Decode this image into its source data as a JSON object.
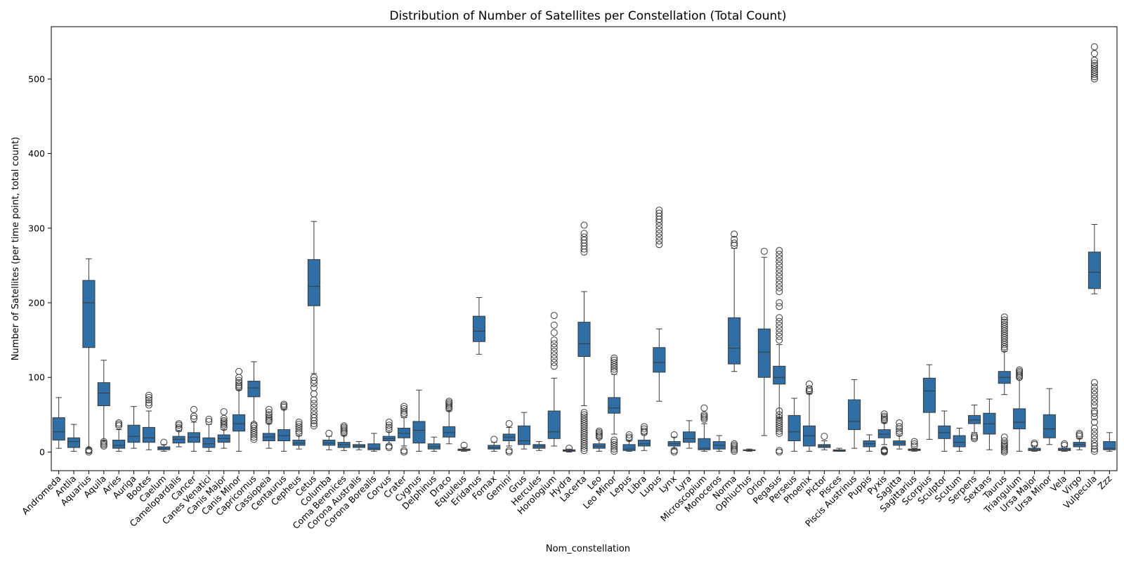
{
  "chart_data": {
    "type": "box",
    "title": "Distribution of Number of Satellites per Constellation (Total Count)",
    "xlabel": "Nom_constellation",
    "ylabel": "Number of Satellites (per time point, total count)",
    "ylim": [
      -25,
      570
    ],
    "yticks": [
      0,
      100,
      200,
      300,
      400,
      500
    ],
    "grid": false,
    "box_color": "#2f6fa6",
    "series": [
      {
        "name": "Andromeda",
        "whislo": 5,
        "q1": 16,
        "med": 27,
        "q3": 46,
        "whishi": 73,
        "fliers": []
      },
      {
        "name": "Antlia",
        "whislo": 1,
        "q1": 6,
        "med": 14,
        "q3": 19,
        "whishi": 37,
        "fliers": []
      },
      {
        "name": "Aquarius",
        "whislo": 5,
        "q1": 140,
        "med": 200,
        "q3": 230,
        "whishi": 259,
        "fliers": [
          0,
          2,
          3
        ]
      },
      {
        "name": "Aquila",
        "whislo": 15,
        "q1": 62,
        "med": 79,
        "q3": 93,
        "whishi": 123,
        "fliers": [
          8,
          10,
          12,
          14
        ]
      },
      {
        "name": "Aries",
        "whislo": 1,
        "q1": 5,
        "med": 9,
        "q3": 16,
        "whishi": 30,
        "fliers": [
          35,
          37,
          39
        ]
      },
      {
        "name": "Auriga",
        "whislo": 5,
        "q1": 13,
        "med": 21,
        "q3": 36,
        "whishi": 61,
        "fliers": []
      },
      {
        "name": "Bootes",
        "whislo": 3,
        "q1": 13,
        "med": 19,
        "q3": 33,
        "whishi": 55,
        "fliers": [
          63,
          66,
          70,
          73,
          76
        ]
      },
      {
        "name": "Caelum",
        "whislo": 1,
        "q1": 3,
        "med": 5,
        "q3": 7,
        "whishi": 10,
        "fliers": [
          13
        ]
      },
      {
        "name": "Camelopardalis",
        "whislo": 7,
        "q1": 12,
        "med": 17,
        "q3": 21,
        "whishi": 28,
        "fliers": [
          31,
          33,
          36,
          38
        ]
      },
      {
        "name": "Cancer",
        "whislo": 1,
        "q1": 13,
        "med": 20,
        "q3": 26,
        "whishi": 40,
        "fliers": [
          45,
          48,
          57
        ]
      },
      {
        "name": "Canes Venatici",
        "whislo": 1,
        "q1": 6,
        "med": 11,
        "q3": 19,
        "whishi": 37,
        "fliers": [
          41,
          44
        ]
      },
      {
        "name": "Canis Major",
        "whislo": 5,
        "q1": 13,
        "med": 18,
        "q3": 23,
        "whishi": 30,
        "fliers": [
          33,
          36,
          38,
          40,
          42,
          45,
          54
        ]
      },
      {
        "name": "Canis Minor",
        "whislo": 1,
        "q1": 28,
        "med": 38,
        "q3": 50,
        "whishi": 83,
        "fliers": [
          86,
          88,
          90,
          93,
          96,
          100,
          108
        ]
      },
      {
        "name": "Capricornus",
        "whislo": 39,
        "q1": 74,
        "med": 86,
        "q3": 95,
        "whishi": 121,
        "fliers": [
          17,
          20,
          23,
          26,
          29,
          32,
          35,
          37
        ]
      },
      {
        "name": "Cassiopeia",
        "whislo": 5,
        "q1": 15,
        "med": 20,
        "q3": 25,
        "whishi": 38,
        "fliers": [
          41,
          43,
          45,
          47,
          50,
          53,
          57
        ]
      },
      {
        "name": "Centaurus",
        "whislo": 1,
        "q1": 15,
        "med": 22,
        "q3": 30,
        "whishi": 57,
        "fliers": [
          60,
          62,
          64
        ]
      },
      {
        "name": "Cepheus",
        "whislo": 4,
        "q1": 9,
        "med": 12,
        "q3": 16,
        "whishi": 22,
        "fliers": [
          25,
          28,
          31,
          34,
          37,
          40
        ]
      },
      {
        "name": "Cetus",
        "whislo": 105,
        "q1": 196,
        "med": 222,
        "q3": 258,
        "whishi": 309,
        "fliers": [
          35,
          38,
          42,
          46,
          50,
          55,
          60,
          65,
          70,
          78,
          86,
          92,
          96,
          100
        ]
      },
      {
        "name": "Columba",
        "whislo": 3,
        "q1": 9,
        "med": 12,
        "q3": 16,
        "whishi": 21,
        "fliers": [
          25
        ]
      },
      {
        "name": "Coma Berenices",
        "whislo": 2,
        "q1": 6,
        "med": 10,
        "q3": 13,
        "whishi": 22,
        "fliers": [
          25,
          27,
          29,
          31,
          33,
          35
        ]
      },
      {
        "name": "Corona Australis",
        "whislo": 3,
        "q1": 6,
        "med": 8,
        "q3": 10,
        "whishi": 14,
        "fliers": []
      },
      {
        "name": "Corona Borealis",
        "whislo": 1,
        "q1": 3,
        "med": 5,
        "q3": 11,
        "whishi": 25,
        "fliers": []
      },
      {
        "name": "Corvus",
        "whislo": 10,
        "q1": 15,
        "med": 18,
        "q3": 21,
        "whishi": 27,
        "fliers": [
          6,
          8,
          30,
          33,
          36,
          40
        ]
      },
      {
        "name": "Crater",
        "whislo": 8,
        "q1": 19,
        "med": 25,
        "q3": 32,
        "whishi": 46,
        "fliers": [
          0,
          2,
          50,
          52,
          55,
          58,
          61
        ]
      },
      {
        "name": "Cygnus",
        "whislo": 1,
        "q1": 12,
        "med": 29,
        "q3": 41,
        "whishi": 83,
        "fliers": []
      },
      {
        "name": "Delphinus",
        "whislo": 1,
        "q1": 4,
        "med": 7,
        "q3": 11,
        "whishi": 20,
        "fliers": []
      },
      {
        "name": "Draco",
        "whislo": 11,
        "q1": 20,
        "med": 26,
        "q3": 34,
        "whishi": 55,
        "fliers": [
          58,
          60,
          62,
          64,
          66,
          68
        ]
      },
      {
        "name": "Equuleus",
        "whislo": 1,
        "q1": 2,
        "med": 3,
        "q3": 4,
        "whishi": 6,
        "fliers": [
          9
        ]
      },
      {
        "name": "Eridanus",
        "whislo": 131,
        "q1": 148,
        "med": 162,
        "q3": 182,
        "whishi": 207,
        "fliers": []
      },
      {
        "name": "Fornax",
        "whislo": 1,
        "q1": 4,
        "med": 6,
        "q3": 9,
        "whishi": 13,
        "fliers": [
          17
        ]
      },
      {
        "name": "Gemini",
        "whislo": 8,
        "q1": 15,
        "med": 20,
        "q3": 24,
        "whishi": 33,
        "fliers": [
          0,
          2,
          38
        ]
      },
      {
        "name": "Grus",
        "whislo": 4,
        "q1": 10,
        "med": 15,
        "q3": 35,
        "whishi": 53,
        "fliers": []
      },
      {
        "name": "Hercules",
        "whislo": 2,
        "q1": 5,
        "med": 8,
        "q3": 10,
        "whishi": 14,
        "fliers": []
      },
      {
        "name": "Horologium",
        "whislo": 8,
        "q1": 18,
        "med": 27,
        "q3": 55,
        "whishi": 99,
        "fliers": [
          115,
          120,
          125,
          130,
          135,
          140,
          145,
          150,
          160,
          170,
          183
        ]
      },
      {
        "name": "Hydra",
        "whislo": 0,
        "q1": 1,
        "med": 2,
        "q3": 3,
        "whishi": 4,
        "fliers": [
          5
        ]
      },
      {
        "name": "Lacerta",
        "whislo": 62,
        "q1": 128,
        "med": 145,
        "q3": 174,
        "whishi": 215,
        "fliers": [
          2,
          5,
          8,
          11,
          14,
          17,
          20,
          23,
          26,
          29,
          32,
          35,
          38,
          41,
          44,
          47,
          50,
          53,
          268,
          272,
          276,
          280,
          284,
          288,
          293,
          304
        ]
      },
      {
        "name": "Leo",
        "whislo": 1,
        "q1": 5,
        "med": 8,
        "q3": 11,
        "whishi": 18,
        "fliers": [
          20,
          22,
          24,
          26,
          28
        ]
      },
      {
        "name": "Leo Minor",
        "whislo": 24,
        "q1": 52,
        "med": 59,
        "q3": 73,
        "whishi": 104,
        "fliers": [
          1,
          4,
          7,
          10,
          13,
          16,
          108,
          111,
          114,
          117,
          120,
          123,
          126
        ]
      },
      {
        "name": "Lepus",
        "whislo": 1,
        "q1": 2,
        "med": 4,
        "q3": 10,
        "whishi": 15,
        "fliers": [
          18,
          20,
          23
        ]
      },
      {
        "name": "Libra",
        "whislo": 2,
        "q1": 8,
        "med": 11,
        "q3": 16,
        "whishi": 24,
        "fliers": [
          26,
          28,
          31,
          34
        ]
      },
      {
        "name": "Lupus",
        "whislo": 68,
        "q1": 107,
        "med": 120,
        "q3": 140,
        "whishi": 165,
        "fliers": [
          278,
          283,
          288,
          293,
          298,
          303,
          308,
          312,
          316,
          320,
          324
        ]
      },
      {
        "name": "Lynx",
        "whislo": 5,
        "q1": 8,
        "med": 11,
        "q3": 14,
        "whishi": 20,
        "fliers": [
          0,
          2,
          23
        ]
      },
      {
        "name": "Lyra",
        "whislo": 5,
        "q1": 13,
        "med": 18,
        "q3": 27,
        "whishi": 42,
        "fliers": []
      },
      {
        "name": "Microscopium",
        "whislo": 1,
        "q1": 3,
        "med": 5,
        "q3": 18,
        "whishi": 38,
        "fliers": [
          44,
          46,
          48,
          50,
          59
        ]
      },
      {
        "name": "Monoceros",
        "whislo": 1,
        "q1": 4,
        "med": 9,
        "q3": 14,
        "whishi": 22,
        "fliers": []
      },
      {
        "name": "Norma",
        "whislo": 108,
        "q1": 118,
        "med": 139,
        "q3": 180,
        "whishi": 273,
        "fliers": [
          1,
          3,
          5,
          7,
          9,
          11,
          277,
          280,
          285,
          292
        ]
      },
      {
        "name": "Ophiuchus",
        "whislo": 1,
        "q1": 2,
        "med": 2,
        "q3": 3,
        "whishi": 4,
        "fliers": []
      },
      {
        "name": "Orion",
        "whislo": 22,
        "q1": 100,
        "med": 134,
        "q3": 165,
        "whishi": 261,
        "fliers": [
          269
        ]
      },
      {
        "name": "Pegasus",
        "whislo": 45,
        "q1": 91,
        "med": 100,
        "q3": 115,
        "whishi": 144,
        "fliers": [
          0,
          2,
          25,
          28,
          31,
          34,
          37,
          40,
          43,
          46,
          50,
          55,
          150,
          155,
          160,
          165,
          170,
          175,
          180,
          195,
          200,
          215,
          220,
          225,
          230,
          235,
          240,
          245,
          250,
          255,
          260,
          265,
          270
        ]
      },
      {
        "name": "Perseus",
        "whislo": 1,
        "q1": 15,
        "med": 27,
        "q3": 49,
        "whishi": 72,
        "fliers": []
      },
      {
        "name": "Phoenix",
        "whislo": 1,
        "q1": 8,
        "med": 22,
        "q3": 35,
        "whishi": 78,
        "fliers": [
          81,
          83,
          85,
          91
        ]
      },
      {
        "name": "Pictor",
        "whislo": 3,
        "q1": 6,
        "med": 8,
        "q3": 10,
        "whishi": 15,
        "fliers": [
          21
        ]
      },
      {
        "name": "Pisces",
        "whislo": 1,
        "q1": 1,
        "med": 2,
        "q3": 3,
        "whishi": 5,
        "fliers": []
      },
      {
        "name": "Piscis Austrinus",
        "whislo": 5,
        "q1": 30,
        "med": 41,
        "q3": 70,
        "whishi": 97,
        "fliers": []
      },
      {
        "name": "Puppis",
        "whislo": 1,
        "q1": 7,
        "med": 11,
        "q3": 15,
        "whishi": 23,
        "fliers": []
      },
      {
        "name": "Pyxis",
        "whislo": 10,
        "q1": 19,
        "med": 24,
        "q3": 30,
        "whishi": 39,
        "fliers": [
          0,
          1,
          2,
          3,
          42,
          44,
          46,
          48,
          51
        ]
      },
      {
        "name": "Sagitta",
        "whislo": 4,
        "q1": 9,
        "med": 12,
        "q3": 15,
        "whishi": 22,
        "fliers": [
          25,
          28,
          31,
          34,
          39
        ]
      },
      {
        "name": "Sagittarius",
        "whislo": 1,
        "q1": 2,
        "med": 3,
        "q3": 4,
        "whishi": 5,
        "fliers": [
          8,
          11,
          14
        ]
      },
      {
        "name": "Scorpius",
        "whislo": 17,
        "q1": 53,
        "med": 82,
        "q3": 99,
        "whishi": 117,
        "fliers": []
      },
      {
        "name": "Sculptor",
        "whislo": 1,
        "q1": 18,
        "med": 26,
        "q3": 35,
        "whishi": 55,
        "fliers": []
      },
      {
        "name": "Scutum",
        "whislo": 1,
        "q1": 7,
        "med": 13,
        "q3": 22,
        "whishi": 32,
        "fliers": []
      },
      {
        "name": "Serpens",
        "whislo": 26,
        "q1": 38,
        "med": 43,
        "q3": 49,
        "whishi": 63,
        "fliers": [
          18,
          20,
          22
        ]
      },
      {
        "name": "Sextans",
        "whislo": 3,
        "q1": 24,
        "med": 38,
        "q3": 52,
        "whishi": 71,
        "fliers": []
      },
      {
        "name": "Taurus",
        "whislo": 77,
        "q1": 92,
        "med": 100,
        "q3": 108,
        "whishi": 135,
        "fliers": [
          0,
          2,
          4,
          6,
          8,
          10,
          12,
          15,
          20,
          138,
          141,
          144,
          147,
          150,
          153,
          156,
          159,
          162,
          165,
          168,
          171,
          174,
          177,
          181
        ]
      },
      {
        "name": "Triangulum",
        "whislo": 1,
        "q1": 31,
        "med": 40,
        "q3": 58,
        "whishi": 98,
        "fliers": [
          100,
          102,
          104,
          106,
          108,
          110
        ]
      },
      {
        "name": "Ursa Major",
        "whislo": 1,
        "q1": 2,
        "med": 3,
        "q3": 5,
        "whishi": 8,
        "fliers": [
          10,
          12
        ]
      },
      {
        "name": "Ursa Minor",
        "whislo": 10,
        "q1": 19,
        "med": 31,
        "q3": 50,
        "whishi": 85,
        "fliers": []
      },
      {
        "name": "Vela",
        "whislo": 1,
        "q1": 2,
        "med": 3,
        "q3": 5,
        "whishi": 7,
        "fliers": [
          9,
          11
        ]
      },
      {
        "name": "Virgo",
        "whislo": 3,
        "q1": 7,
        "med": 10,
        "q3": 13,
        "whishi": 18,
        "fliers": [
          21,
          23,
          25
        ]
      },
      {
        "name": "Vulpecula",
        "whislo": 212,
        "q1": 219,
        "med": 241,
        "q3": 268,
        "whishi": 305,
        "fliers": [
          1,
          4,
          8,
          12,
          17,
          22,
          27,
          32,
          40,
          47,
          52,
          55,
          62,
          67,
          72,
          77,
          82,
          87,
          93,
          500,
          503,
          506,
          509,
          512,
          515,
          518,
          521,
          525,
          534,
          543
        ]
      },
      {
        "name": "Zzz",
        "whislo": 1,
        "q1": 3,
        "med": 5,
        "q3": 14,
        "whishi": 26,
        "fliers": []
      }
    ]
  }
}
